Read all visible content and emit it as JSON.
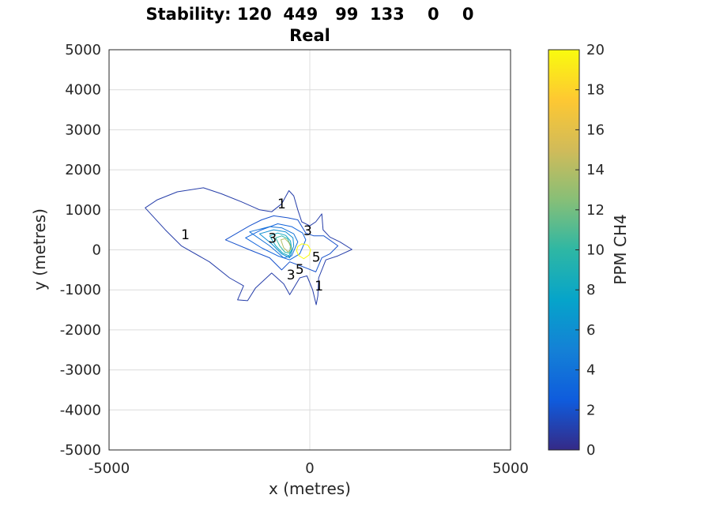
{
  "title_line1": "Stability: 120  449   99  133    0    0",
  "title_line2": "Real",
  "chart_data": {
    "type": "contour",
    "xlabel": "x (metres)",
    "ylabel": "y (metres)",
    "xlim": [
      -5000,
      5000
    ],
    "ylim": [
      -5000,
      5000
    ],
    "xticks": [
      -5000,
      0,
      5000
    ],
    "yticks": [
      -5000,
      -4000,
      -3000,
      -2000,
      -1000,
      0,
      1000,
      2000,
      3000,
      4000,
      5000
    ],
    "grid": true,
    "colorbar": {
      "label": "PPM CH4",
      "range": [
        0,
        20
      ],
      "ticks": [
        0,
        2,
        4,
        6,
        8,
        10,
        12,
        14,
        16,
        18,
        20
      ],
      "colormap": "parula",
      "colors": [
        "#352a87",
        "#0f5cdd",
        "#1481d6",
        "#06a4ca",
        "#2eb7a4",
        "#87bf77",
        "#d1bb59",
        "#fec832",
        "#f9fb0e"
      ]
    },
    "source_location": [
      0,
      0
    ],
    "contour_levels": [
      {
        "level": 1,
        "points": [
          [
            -2650,
            1550
          ],
          [
            -2200,
            1400
          ],
          [
            -1700,
            1200
          ],
          [
            -1250,
            1000
          ],
          [
            -950,
            950
          ],
          [
            -700,
            1150
          ],
          [
            -520,
            1480
          ],
          [
            -400,
            1350
          ],
          [
            -300,
            1000
          ],
          [
            -200,
            700
          ],
          [
            0,
            600
          ],
          [
            150,
            700
          ],
          [
            300,
            900
          ],
          [
            330,
            500
          ],
          [
            500,
            320
          ],
          [
            750,
            200
          ],
          [
            1050,
            10
          ],
          [
            700,
            -150
          ],
          [
            400,
            -250
          ],
          [
            220,
            -700
          ],
          [
            200,
            -1150
          ],
          [
            160,
            -1370
          ],
          [
            70,
            -1000
          ],
          [
            -70,
            -650
          ],
          [
            -250,
            -700
          ],
          [
            -500,
            -1120
          ],
          [
            -650,
            -850
          ],
          [
            -950,
            -580
          ],
          [
            -1350,
            -950
          ],
          [
            -1550,
            -1270
          ],
          [
            -1800,
            -1250
          ],
          [
            -1650,
            -900
          ],
          [
            -2000,
            -700
          ],
          [
            -2500,
            -300
          ],
          [
            -3200,
            100
          ],
          [
            -3600,
            500
          ],
          [
            -4100,
            1050
          ],
          [
            -3800,
            1250
          ],
          [
            -3300,
            1450
          ],
          [
            -2650,
            1550
          ]
        ]
      },
      {
        "level": 2,
        "points": [
          [
            -2100,
            250
          ],
          [
            -1500,
            600
          ],
          [
            -1200,
            750
          ],
          [
            -900,
            850
          ],
          [
            -550,
            800
          ],
          [
            -300,
            750
          ],
          [
            -100,
            420
          ],
          [
            100,
            350
          ],
          [
            350,
            350
          ],
          [
            700,
            100
          ],
          [
            500,
            -100
          ],
          [
            300,
            -200
          ],
          [
            150,
            -550
          ],
          [
            -100,
            -450
          ],
          [
            -500,
            -300
          ],
          [
            -700,
            -500
          ],
          [
            -1000,
            -200
          ],
          [
            -1500,
            0
          ],
          [
            -2100,
            250
          ]
        ]
      },
      {
        "level": 3,
        "points": [
          [
            -1600,
            300
          ],
          [
            -1200,
            500
          ],
          [
            -800,
            650
          ],
          [
            -450,
            580
          ],
          [
            -180,
            420
          ],
          [
            -100,
            250
          ],
          [
            -250,
            -100
          ],
          [
            -500,
            -250
          ],
          [
            -800,
            -150
          ],
          [
            -1200,
            50
          ],
          [
            -1600,
            300
          ]
        ]
      },
      {
        "level": 4,
        "points": [
          [
            -1500,
            450
          ],
          [
            -1000,
            580
          ],
          [
            -700,
            550
          ],
          [
            -400,
            400
          ],
          [
            -300,
            200
          ],
          [
            -450,
            -150
          ],
          [
            -650,
            -200
          ],
          [
            -1000,
            100
          ],
          [
            -1500,
            450
          ]
        ]
      },
      {
        "level": 6,
        "points": [
          [
            -1250,
            400
          ],
          [
            -900,
            500
          ],
          [
            -600,
            450
          ],
          [
            -420,
            300
          ],
          [
            -400,
            100
          ],
          [
            -500,
            -200
          ],
          [
            -700,
            -100
          ],
          [
            -950,
            150
          ],
          [
            -1250,
            400
          ]
        ]
      },
      {
        "level": 8,
        "points": [
          [
            -1000,
            350
          ],
          [
            -800,
            420
          ],
          [
            -600,
            360
          ],
          [
            -480,
            220
          ],
          [
            -450,
            0
          ],
          [
            -520,
            -150
          ],
          [
            -680,
            -80
          ],
          [
            -850,
            100
          ],
          [
            -1000,
            350
          ]
        ]
      },
      {
        "level": 10,
        "points": [
          [
            -850,
            300
          ],
          [
            -700,
            350
          ],
          [
            -560,
            280
          ],
          [
            -480,
            120
          ],
          [
            -500,
            -80
          ],
          [
            -620,
            -60
          ],
          [
            -750,
            100
          ],
          [
            -850,
            300
          ]
        ]
      },
      {
        "level": 14,
        "points": [
          [
            -720,
            250
          ],
          [
            -620,
            280
          ],
          [
            -520,
            180
          ],
          [
            -460,
            30
          ],
          [
            -540,
            -50
          ],
          [
            -650,
            50
          ],
          [
            -720,
            250
          ]
        ]
      },
      {
        "level": 20,
        "points": [
          [
            -300,
            80
          ],
          [
            -200,
            150
          ],
          [
            -50,
            120
          ],
          [
            20,
            0
          ],
          [
            -20,
            -130
          ],
          [
            -150,
            -220
          ],
          [
            -280,
            -140
          ],
          [
            -330,
            -20
          ],
          [
            -300,
            80
          ]
        ]
      }
    ],
    "contour_labels": [
      {
        "text": "1",
        "x": -700,
        "y": 1150
      },
      {
        "text": "1",
        "x": -3100,
        "y": 380
      },
      {
        "text": "1",
        "x": 230,
        "y": -900
      },
      {
        "text": "3",
        "x": -50,
        "y": 480
      },
      {
        "text": "3",
        "x": -470,
        "y": -620
      },
      {
        "text": "5",
        "x": -250,
        "y": -480
      },
      {
        "text": "5",
        "x": 160,
        "y": -180
      },
      {
        "text": "3",
        "x": -930,
        "y": 300
      }
    ]
  }
}
